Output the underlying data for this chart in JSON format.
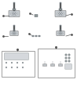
{
  "bg_color": "#ffffff",
  "component_color": "#a8b0b8",
  "dark_color": "#606870",
  "light_color": "#c8cdd2",
  "outline_color": "#787878",
  "mid_color": "#909898",
  "stem_color": "#585858",
  "box_outline": "#909090",
  "inner_light": "#d5d8dc",
  "callout_color": "#555555"
}
